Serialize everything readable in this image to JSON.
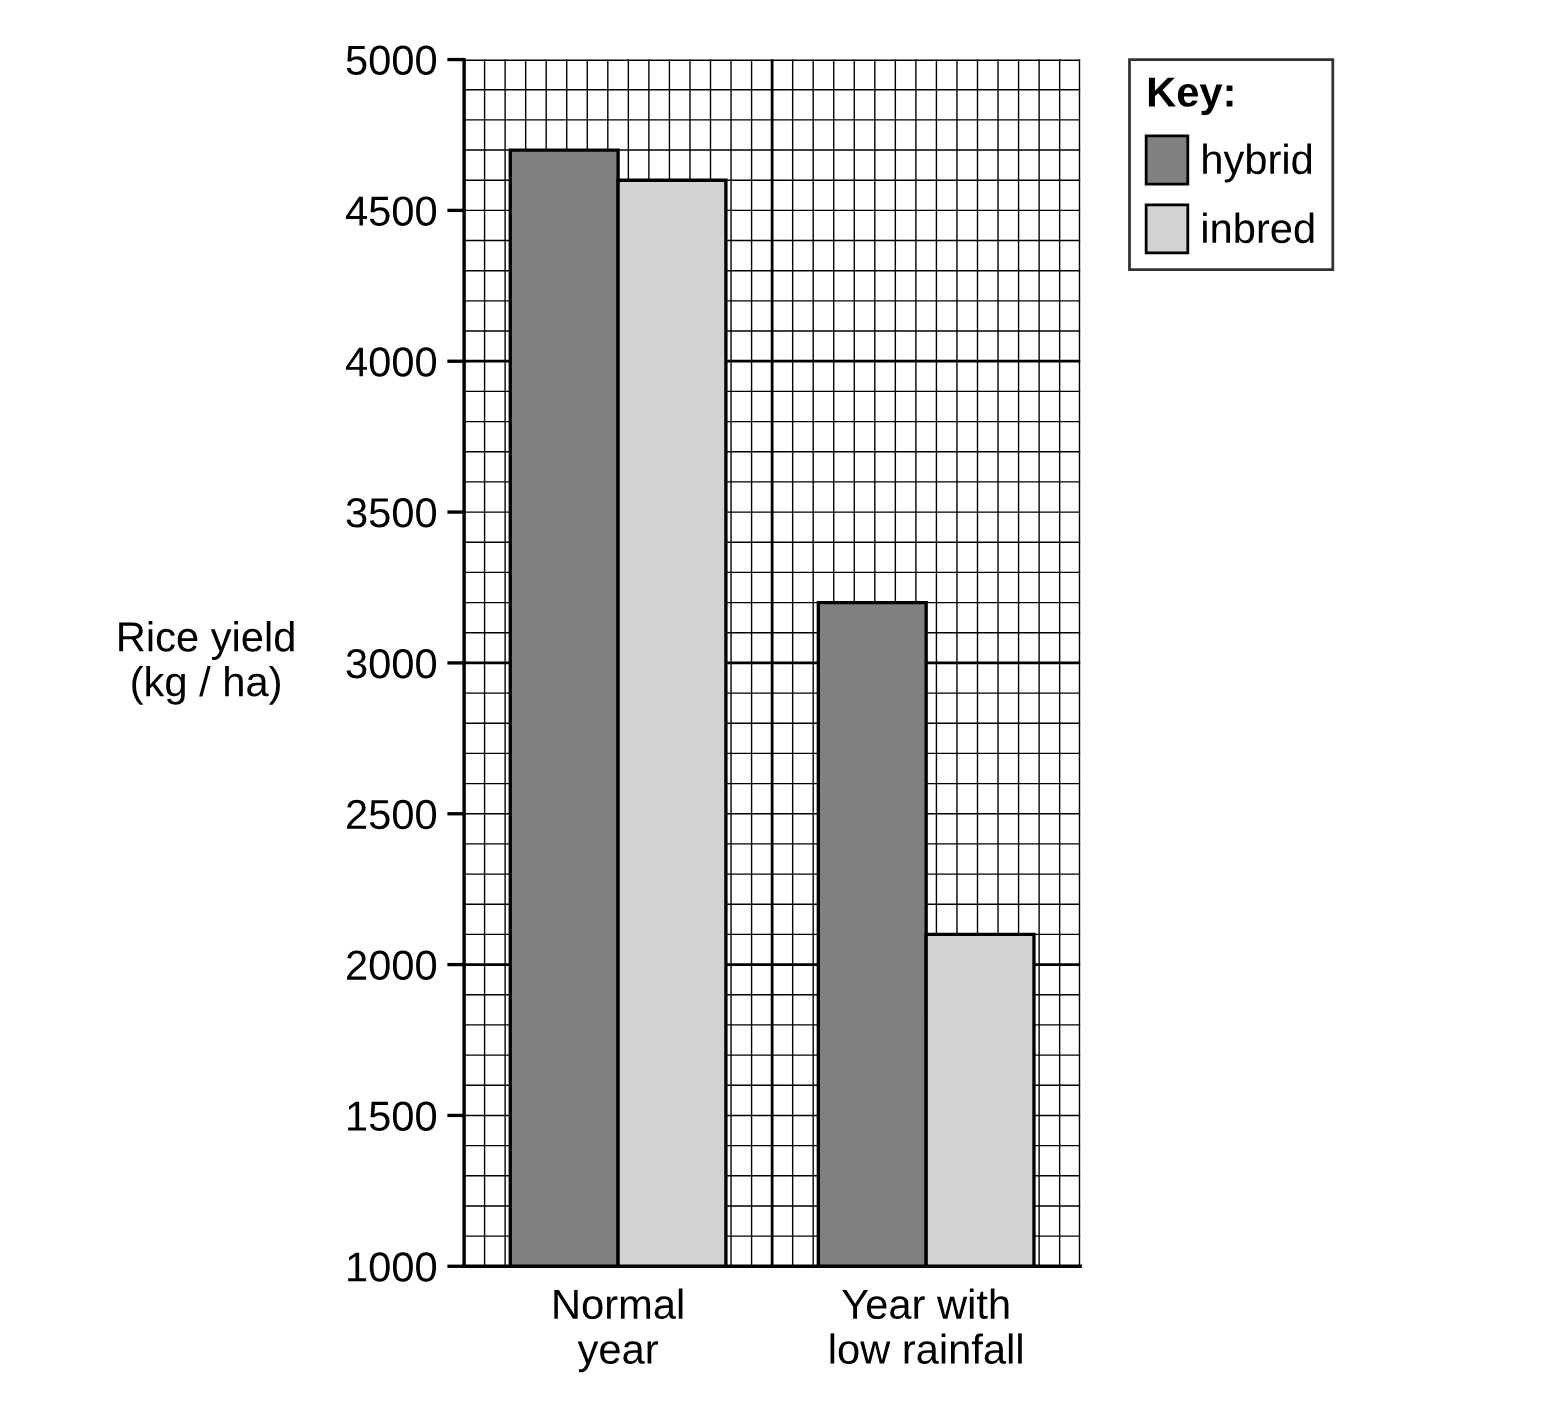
{
  "chart_data": {
    "type": "bar",
    "ylabel": "Rice yield\n(kg / ha)",
    "legend_title": "Key:",
    "categories": [
      "Normal\nyear",
      "Year with\nlow rainfall"
    ],
    "series": [
      {
        "name": "hybrid",
        "color": "#808083",
        "values": [
          4700,
          3200
        ]
      },
      {
        "name": "inbred",
        "color": "#d1d3d4",
        "values": [
          4600,
          2100
        ]
      }
    ],
    "ylim": [
      1000,
      5000
    ],
    "yticks": [
      1000,
      1500,
      2000,
      2500,
      3000,
      3500,
      4000,
      4500,
      5000
    ],
    "grid": true,
    "legend": "top right"
  }
}
